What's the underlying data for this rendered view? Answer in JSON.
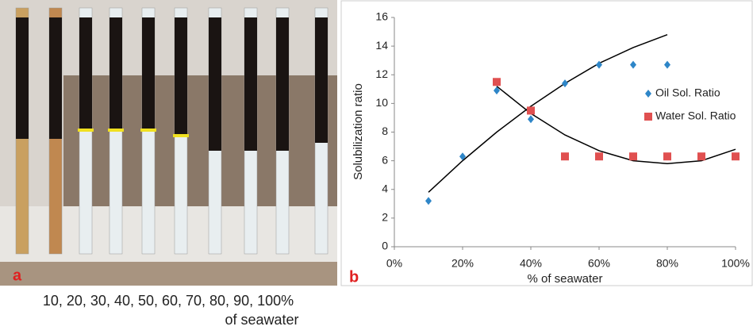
{
  "photo": {
    "label": "a",
    "caption_line1": "10, 20, 30, 40, 50, 60, 70, 80, 90, 100%",
    "caption_line2": "of seawater"
  },
  "chart_data": {
    "type": "scatter",
    "panel_label": "b",
    "x_label": "% of seawater",
    "y_label": "Solubilization ratio",
    "xlim": [
      0,
      100
    ],
    "ylim": [
      0,
      16
    ],
    "xticks": [
      {
        "value": 0,
        "label": "0%"
      },
      {
        "value": 20,
        "label": "20%"
      },
      {
        "value": 40,
        "label": "40%"
      },
      {
        "value": 60,
        "label": "60%"
      },
      {
        "value": 80,
        "label": "80%"
      },
      {
        "value": 100,
        "label": "100%"
      }
    ],
    "yticks": [
      0,
      2,
      4,
      6,
      8,
      10,
      12,
      14,
      16
    ],
    "grid": false,
    "legend": "right",
    "series": [
      {
        "name": "Oil Sol. Ratio",
        "color": "#2e86c8",
        "marker": "diamond",
        "x": [
          10,
          20,
          30,
          40,
          50,
          60,
          70,
          80
        ],
        "values": [
          3.2,
          6.3,
          10.9,
          8.9,
          11.4,
          12.7,
          12.7,
          12.7
        ]
      },
      {
        "name": "Water Sol. Ratio",
        "color": "#e05050",
        "marker": "square",
        "x": [
          30,
          40,
          50,
          60,
          70,
          80,
          90,
          100
        ],
        "values": [
          11.5,
          9.5,
          6.3,
          6.3,
          6.3,
          6.3,
          6.3,
          6.3
        ]
      }
    ],
    "trendlines": [
      {
        "color": "#000000",
        "x": [
          10,
          20,
          30,
          40,
          50,
          60,
          70,
          80
        ],
        "values": [
          3.8,
          6.0,
          8.0,
          9.8,
          11.4,
          12.8,
          13.9,
          14.8
        ]
      },
      {
        "color": "#000000",
        "x": [
          30,
          40,
          50,
          60,
          70,
          80,
          90,
          100
        ],
        "values": [
          11.2,
          9.3,
          7.8,
          6.7,
          6.0,
          5.8,
          6.0,
          6.8
        ]
      }
    ]
  }
}
